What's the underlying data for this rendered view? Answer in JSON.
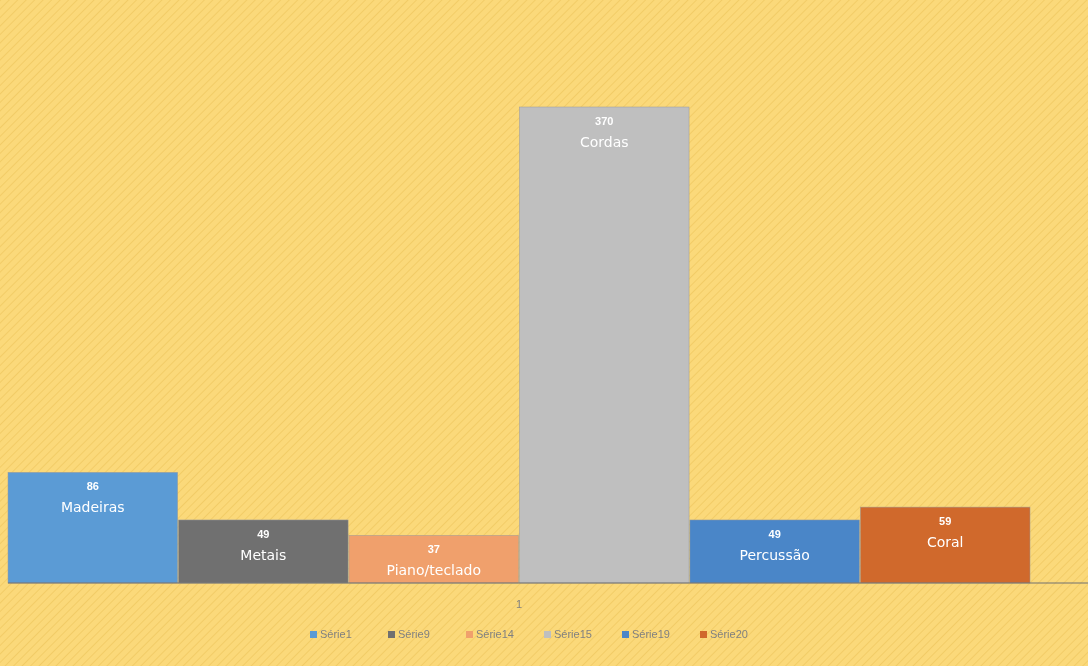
{
  "chart_data": {
    "type": "bar",
    "categories": [
      "Madeiras",
      "Metais",
      "Piano/teclado",
      "Cordas",
      "Percussão",
      "Coral"
    ],
    "series": [
      {
        "name": "Série1",
        "color": "#5b9bd5",
        "values": [
          86,
          null,
          null,
          null,
          null,
          null
        ]
      },
      {
        "name": "Série9",
        "color": "#707070",
        "values": [
          null,
          49,
          null,
          null,
          null,
          null
        ]
      },
      {
        "name": "Série14",
        "color": "#f0a06c",
        "values": [
          null,
          null,
          37,
          null,
          null,
          null
        ]
      },
      {
        "name": "Série15",
        "color": "#bfbfbf",
        "values": [
          null,
          null,
          null,
          370,
          null,
          null
        ]
      },
      {
        "name": "Série19",
        "color": "#4a86c8",
        "values": [
          null,
          null,
          null,
          null,
          49,
          null
        ]
      },
      {
        "name": "Série20",
        "color": "#d0692c",
        "values": [
          null,
          null,
          null,
          null,
          null,
          59
        ]
      }
    ],
    "annotations": [
      "1"
    ],
    "stacked": true,
    "data_labels": true,
    "legend": "bottom"
  }
}
